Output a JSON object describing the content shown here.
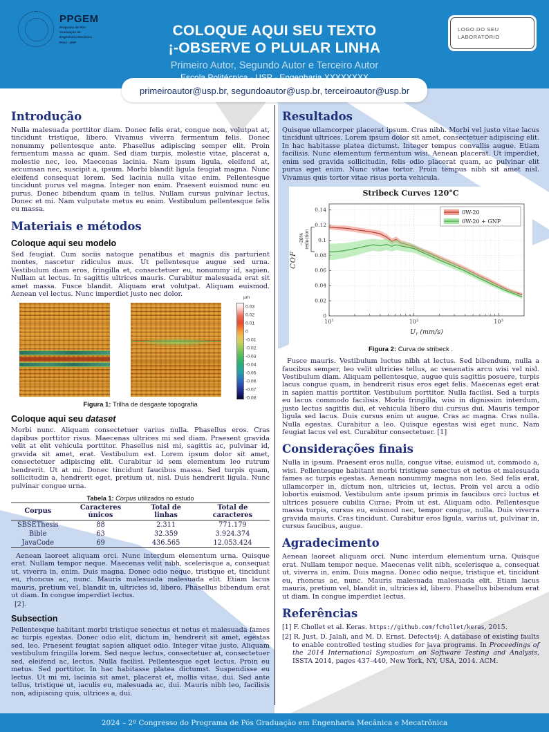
{
  "header": {
    "logo": {
      "acronym": "PPGEM",
      "sub1": "Programa de Pós",
      "sub2": "Graduação de",
      "sub3": "Engenharia Mecânica",
      "sub4": "POLI - USP"
    },
    "title_line1": "COLOQUE AQUI SEU TEXTO",
    "title_line2": "¡-OBSERVE O PLULAR LINHA",
    "authors": "Primeiro Autor, Segundo Autor e Terceiro Autor",
    "affiliation": "Escola Politécnica - USP - Engenharia XXXXXXXX",
    "emails": "primeiroautor@usp.br, segundoautor@usp.br, terceiroautor@usp.br",
    "lab_logo": "LOGO DO SEU LABORATÓRIO"
  },
  "left": {
    "intro": {
      "heading": "Introdução",
      "body": "Nulla malesuada porttitor diam. Donec felis erat, congue non, volutpat at, tincidunt tristique, libero. Vivamus viverra fermentum felis. Donec nonummy pellentesque ante. Phasellus adipiscing semper elit. Proin fermentum massa ac quam. Sed diam turpis, molestie vitae, placerat a, molestie nec, leo. Maecenas lacinia. Nam ipsum ligula, eleifend at, accumsan nec, suscipit a, ipsum. Morbi blandit ligula feugiat magna. Nunc eleifend consequat lorem. Sed lacinia nulla vitae enim. Pellentesque tincidunt purus vel magna. Integer non enim. Praesent euismod nunc eu purus. Donec bibendum quam in tellus. Nullam cursus pulvinar lectus. Donec et mi. Nam vulputate metus eu enim. Vestibulum pellentesque felis eu massa."
    },
    "methods": {
      "heading": "Materiais e métodos",
      "sub1": "Coloque aqui seu modelo",
      "body1": "Sed feugiat. Cum sociis natoque penatibus et magnis dis parturient montes, nascetur ridiculus mus. Ut pellentesque augue sed urna. Vestibulum diam eros, fringilla et, consectetuer eu, nonummy id, sapien. Nullam at lectus. In sagittis ultrices mauris. Curabitur malesuada erat sit amet massa. Fusce blandit. Aliquam erat volutpat. Aliquam euismod. Aenean vel lectus. Nunc imperdiet justo nec dolor."
    },
    "figure1": {
      "caption_label": "Figura 1:",
      "caption_text": "Trilha de desgaste topografia",
      "colorbar_unit": "µm",
      "colorbar_ticks": [
        "0.03",
        "0.02",
        "0.01",
        "0",
        "-0.01",
        "-0.02",
        "-0.03",
        "-0.04",
        "-0.05",
        "-0.06",
        "-0.07",
        "-0.08"
      ]
    },
    "dataset": {
      "heading_prefix": "Coloque aqui seu ",
      "heading_italic": "dataset",
      "body": "Morbi nunc. Aliquam consectetuer varius nulla. Phasellus eros. Cras dapibus porttitor risus. Maecenas ultrices mi sed diam. Praesent gravida velit at elit vehicula porttitor. Phasellus nisl mi, sagittis ac, pulvinar id, gravida sit amet, erat. Vestibulum est. Lorem ipsum dolor sit amet, consectetuer adipiscing elit. Curabitur id sem elementum leo rutrum hendrerit. Ut at mi. Donec tincidunt faucibus massa. Sed turpis quam, sollicitudin a, hendrerit eget, pretium ut, nisl. Duis hendrerit ligula. Nunc pulvinar congue urna."
    },
    "table": {
      "caption_label": "Tabela 1:",
      "caption_italic": "Corpus",
      "caption_rest": " utilizados no estudo",
      "headers": [
        "Corpus",
        "Caracteres únicos",
        "Total de linhas",
        "Total de caracteres"
      ],
      "rows": [
        [
          "SBSEThesis",
          "88",
          "2.311",
          "771.179"
        ],
        [
          "Bible",
          "63",
          "32.359",
          "3.924.374"
        ],
        [
          "JavaCode",
          "69",
          "436.565",
          "12.053.424"
        ]
      ]
    },
    "after_table": "Aenean laoreet aliquam orci. Nunc interdum elementum urna. Quisque erat. Nullam tempor neque. Maecenas velit nibh, scelerisque a, consequat ut, viverra in, enim. Duis magna. Donec odio neque, tristique et, tincidunt eu, rhoncus ac, nunc. Mauris malesuada malesuada elit. Etiam lacus mauris, pretium vel, blandit in, ultricies id, libero. Phasellus bibendum erat ut diam. In congue imperdiet lectus.",
    "ref_mark": "[2].",
    "subsection": {
      "heading": "Subsection",
      "body": "Pellentesque habitant morbi tristique senectus et netus et malesuada fames ac turpis egestas. Donec odio elit, dictum in, hendrerit sit amet, egestas sed, leo. Praesent feugiat sapien aliquet odio. Integer vitae justo. Aliquam vestibulum fringilla lorem. Sed neque lectus, consectetuer at, consectetuer sed, eleifend ac, lectus. Nulla facilisi. Pellentesque eget lectus. Proin eu metus. Sed porttitor. In hac habitasse platea dictumst. Suspendisse eu lectus. Ut mi mi, lacinia sit amet, placerat et, mollis vitae, dui. Sed ante tellus, tristique ut, iaculis eu, malesuada ac, dui. Mauris nibh leo, facilisis non, adipiscing quis, ultrices a, dui."
    }
  },
  "right": {
    "results": {
      "heading": "Resultados",
      "body": "Quisque ullamcorper placerat ipsum. Cras nibh. Morbi vel justo vitae lacus tincidunt ultrices. Lorem ipsum dolor sit amet, consectetuer adipiscing elit. In hac habitasse platea dictumst. Integer tempus convallis augue. Etiam facilisis. Nunc elementum fermentum wisi. Aenean placerat. Ut imperdiet, enim sed gravida sollicitudin, felis odio placerat quam, ac pulvinar elit purus eget enim. Nunc vitae tortor. Proin tempus nibh sit amet nisl. Vivamus quis tortor vitae risus porta vehicula."
    },
    "figure2": {
      "caption_label": "Figura 2:",
      "caption_text": "Curva de stribeck ."
    },
    "after_figure": "Fusce mauris. Vestibulum luctus nibh at lectus. Sed bibendum, nulla a faucibus semper, leo velit ultricies tellus, ac venenatis arcu wisi vel nisl. Vestibulum diam. Aliquam pellentesque, augue quis sagittis posuere, turpis lacus congue quam, in hendrerit risus eros eget felis. Maecenas eget erat in sapien mattis porttitor. Vestibulum porttitor. Nulla facilisi. Sed a turpis eu lacus commodo facilisis. Morbi fringilla, wisi in dignissim interdum, justo lectus sagittis dui, et vehicula libero dui cursus dui. Mauris tempor ligula sed lacus. Duis cursus enim ut augue. Cras ac magna. Cras nulla. Nulla egestas. Curabitur a leo. Quisque egestas wisi eget nunc. Nam feugiat lacus vel est. Curabitur consectetuer. [1]",
    "finals": {
      "heading": "Considerações finais",
      "body": "Nulla in ipsum. Praesent eros nulla, congue vitae, euismod ut, commodo a, wisi. Pellentesque habitant morbi tristique senectus et netus et malesuada fames ac turpis egestas. Aenean nonummy magna non leo. Sed felis erat, ullamcorper in, dictum non, ultricies ut, lectus. Proin vel arcu a odio lobortis euismod. Vestibulum ante ipsum primis in faucibus orci luctus et ultrices posuere cubilia Curae; Proin ut est. Aliquam odio. Pellentesque massa turpis, cursus eu, euismod nec, tempor congue, nulla. Duis viverra gravida mauris. Cras tincidunt. Curabitur eros ligula, varius ut, pulvinar in, cursus faucibus, augue."
    },
    "ack": {
      "heading": "Agradecimento",
      "body": "Aenean laoreet aliquam orci. Nunc interdum elementum urna. Quisque erat. Nullam tempor neque. Maecenas velit nibh, scelerisque a, consequat ut, viverra in, enim. Duis magna. Donec odio neque, tristique et, tincidunt eu, rhoncus ac, nunc. Mauris malesuada malesuada elit. Etiam lacus mauris, pretium vel, blandit in, ultricies id, libero. Phasellus bibendum erat ut diam. In congue imperdiet lectus."
    },
    "references": {
      "heading": "Referências",
      "r1": {
        "label": "[1]",
        "text": "F. Chollet et al. Keras. ",
        "url": "https://github.com/fchollet/keras",
        "suffix": ", 2015."
      },
      "r2": {
        "label": "[2]",
        "text1": "R. Just, D. Jalali, and M. D. Ernst. Defects4j: A database of existing faults to enable controlled testing studies for java programs. In ",
        "italic": "Proceedings of the 2014 International Symposium on Software Testing and Analysis",
        "text2": ", ISSTA 2014, pages 437–440, New York, NY, USA, 2014. ACM."
      }
    }
  },
  "footer": {
    "text": "2024 – 2º Congresso do Programa de Pós Graduação em Engenharia Mecânica e Mecatrônica"
  },
  "colors": {
    "header_blue": "#1d86c8",
    "pale_blue_ribbon": "#c9daf0",
    "grey_ribbon": "#e3e3e3",
    "heading_navy": "#1d2f7e",
    "body_text": "#1c1c4e",
    "red_series": "#b03a30",
    "green_series": "#4aa64a"
  },
  "chart_data": {
    "type": "line",
    "title": "Stribeck Curves 120°C",
    "xlabel": "U_r (mm/s)",
    "xlabel_parts": [
      "U",
      "r",
      " (mm/s)"
    ],
    "ylabel": "COF",
    "x_scale": "log",
    "xlim": [
      10,
      2000
    ],
    "ylim": [
      0,
      0.148
    ],
    "yticks": [
      0,
      0.02,
      0.04,
      0.06,
      0.08,
      0.1,
      0.12,
      0.14
    ],
    "xticks": [
      10,
      100,
      1000
    ],
    "xtick_labels": [
      "10^1",
      "10^2",
      "10^3"
    ],
    "grid": true,
    "legend_position": "top-right",
    "annotation": {
      "line1": "~28%",
      "line2": "reduction",
      "y_top": 0.1175,
      "y_bottom": 0.085
    },
    "series": [
      {
        "name": "0W-20",
        "line_color": "#b03a30",
        "band_color": "#f08878",
        "x": [
          10,
          12,
          15,
          18,
          22,
          27,
          33,
          40,
          48,
          55,
          62,
          70,
          85,
          100,
          125,
          155,
          190,
          240,
          300,
          380,
          480,
          600,
          760,
          950,
          1200,
          1500,
          1900
        ],
        "y": [
          0.1175,
          0.1165,
          0.116,
          0.115,
          0.1135,
          0.112,
          0.1105,
          0.1085,
          0.104,
          0.0985,
          0.101,
          0.0965,
          0.094,
          0.0915,
          0.0865,
          0.0825,
          0.078,
          0.073,
          0.0685,
          0.0635,
          0.058,
          0.0525,
          0.047,
          0.0415,
          0.036,
          0.0315,
          0.028
        ],
        "band": [
          0.003,
          0.003,
          0.0035,
          0.0035,
          0.0035,
          0.0035,
          0.0035,
          0.004,
          0.004,
          0.004,
          0.004,
          0.0035,
          0.0035,
          0.003,
          0.003,
          0.003,
          0.003,
          0.003,
          0.003,
          0.003,
          0.003,
          0.003,
          0.003,
          0.003,
          0.0025,
          0.0025,
          0.0025
        ]
      },
      {
        "name": "0W-20 + GNP",
        "line_color": "#4aa64a",
        "band_color": "#8fe08f",
        "x": [
          10,
          12,
          15,
          18,
          22,
          27,
          33,
          40,
          48,
          55,
          62,
          70,
          85,
          100,
          125,
          155,
          190,
          240,
          300,
          380,
          480,
          600,
          760,
          950,
          1200,
          1500,
          1900
        ],
        "y": [
          0.0845,
          0.085,
          0.0862,
          0.0878,
          0.0898,
          0.0922,
          0.094,
          0.0928,
          0.0945,
          0.092,
          0.094,
          0.0925,
          0.0905,
          0.089,
          0.084,
          0.0795,
          0.0748,
          0.07,
          0.0655,
          0.0605,
          0.055,
          0.0495,
          0.044,
          0.0388,
          0.0335,
          0.0295,
          0.025
        ],
        "band": [
          0.011,
          0.0105,
          0.01,
          0.0095,
          0.009,
          0.0085,
          0.008,
          0.0078,
          0.0075,
          0.007,
          0.0068,
          0.0065,
          0.006,
          0.0055,
          0.005,
          0.0048,
          0.0045,
          0.0042,
          0.004,
          0.0038,
          0.0036,
          0.0034,
          0.0032,
          0.003,
          0.0028,
          0.0026,
          0.0025
        ]
      }
    ]
  }
}
